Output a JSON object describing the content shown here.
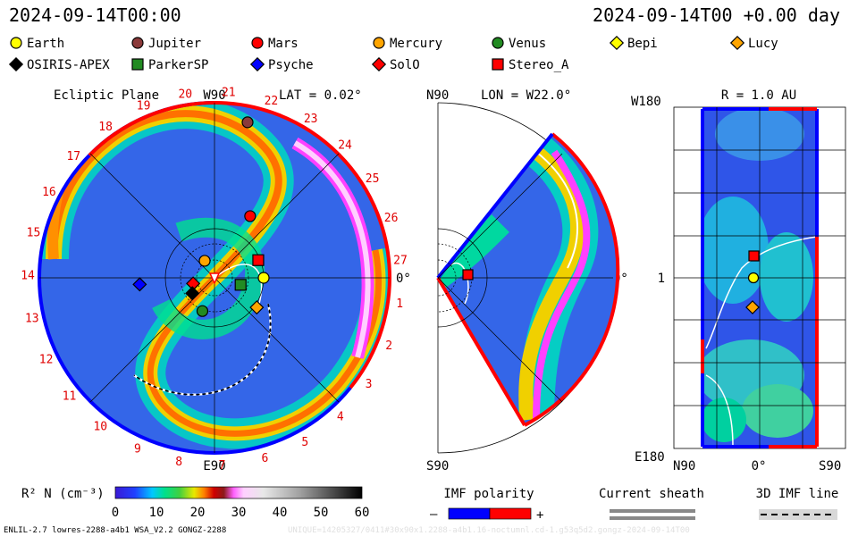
{
  "header": {
    "datetime_left": "2024-09-14T00:00",
    "datetime_right": "2024-09-14T00 +0.00 day"
  },
  "legend": {
    "items": [
      {
        "name": "Earth",
        "marker": "circle",
        "color": "#ffff00"
      },
      {
        "name": "Jupiter",
        "marker": "circle",
        "color": "#8b3a3a"
      },
      {
        "name": "Mars",
        "marker": "circle",
        "color": "#ff0000"
      },
      {
        "name": "Mercury",
        "marker": "circle",
        "color": "#ffa500"
      },
      {
        "name": "Venus",
        "marker": "circle",
        "color": "#228b22"
      },
      {
        "name": "Bepi",
        "marker": "diamond",
        "color": "#ffff00"
      },
      {
        "name": "Lucy",
        "marker": "diamond",
        "color": "#ffa500"
      },
      {
        "name": "OSIRIS-APEX",
        "marker": "diamond",
        "color": "#000000"
      },
      {
        "name": "ParkerSP",
        "marker": "square",
        "color": "#228b22"
      },
      {
        "name": "Psyche",
        "marker": "diamond",
        "color": "#0000ff"
      },
      {
        "name": "SolO",
        "marker": "diamond",
        "color": "#ff0000"
      },
      {
        "name": "Stereo_A",
        "marker": "square",
        "color": "#ff0000"
      }
    ]
  },
  "panels": {
    "ecliptic": {
      "title": "Ecliptic Plane",
      "top_label": "W90",
      "lat_label": "LAT = 0.02°",
      "bottom_label": "E90",
      "right_label": "0°",
      "sector_labels": [
        "20",
        "21",
        "22",
        "23",
        "24",
        "25",
        "26",
        "27",
        "1",
        "2",
        "3",
        "4",
        "5",
        "6",
        "7",
        "8",
        "9",
        "10",
        "11",
        "12",
        "13",
        "14",
        "15",
        "16",
        "17",
        "18",
        "19"
      ]
    },
    "meridional": {
      "top_label": "N90",
      "lon_label": "LON = W22.0°",
      "bottom_label": "S90",
      "right_label": "0°"
    },
    "map": {
      "r_label": "R = 1.0 AU",
      "top_left": "W180",
      "mid_left": "1",
      "bottom_left": "E180",
      "x_left": "N90",
      "x_mid": "0°",
      "x_right": "S90"
    }
  },
  "colorbar": {
    "label": "R² N (cm⁻³)",
    "ticks": [
      "0",
      "10",
      "20",
      "30",
      "40",
      "50",
      "60"
    ],
    "min": 0,
    "max": 60
  },
  "imf": {
    "title": "IMF polarity",
    "minus": "–",
    "plus": "+",
    "neg_color": "#0000ff",
    "pos_color": "#ff0000"
  },
  "sheath": {
    "title": "Current sheath"
  },
  "imfline": {
    "title": "3D IMF line"
  },
  "footer": {
    "left": "ENLIL-2.7 lowres-2288-a4b1 WSA_V2.2 GONGZ-2288",
    "right": "UNIQUE=14205327/0411#30x90x1.2288-a4b1.16-noctumnl.cd-1.g53q5d2.gongz-2024-09-14T00"
  },
  "chart_data": {
    "type": "heatmap",
    "quantity": "R² N (cm⁻³)",
    "range": [
      0,
      60
    ],
    "ecliptic_positions_deg_lon_AU": [
      {
        "name": "Earth",
        "lon_deg": 0,
        "r_au": 1.0
      },
      {
        "name": "Mars",
        "lon_deg": 60,
        "r_au": 1.45
      },
      {
        "name": "Jupiter",
        "lon_deg": 78,
        "r_au": 5.2
      },
      {
        "name": "Mercury",
        "lon_deg": 120,
        "r_au": 0.4
      },
      {
        "name": "Venus",
        "lon_deg": 250,
        "r_au": 0.72
      },
      {
        "name": "Stereo_A",
        "lon_deg": 22,
        "r_au": 0.96
      },
      {
        "name": "ParkerSP",
        "lon_deg": 345,
        "r_au": 0.55
      },
      {
        "name": "Lucy",
        "lon_deg": 325,
        "r_au": 1.05
      },
      {
        "name": "SolO",
        "lon_deg": 195,
        "r_au": 0.45
      },
      {
        "name": "OSIRIS-APEX",
        "lon_deg": 215,
        "r_au": 0.55
      },
      {
        "name": "Psyche",
        "lon_deg": 185,
        "r_au": 2.4
      }
    ]
  }
}
